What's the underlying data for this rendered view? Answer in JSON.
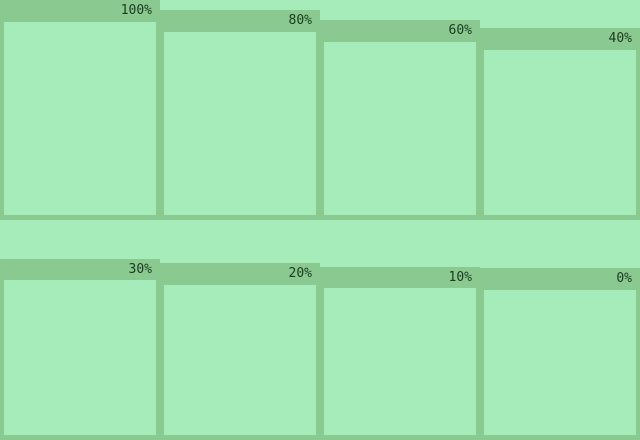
{
  "colors": {
    "background": "#a5ecba",
    "panel_frame": "#8ac98f",
    "label_text": "#1c3a22"
  },
  "panels": [
    {
      "label": "100%"
    },
    {
      "label": "80%"
    },
    {
      "label": "60%"
    },
    {
      "label": "40%"
    },
    {
      "label": "30%"
    },
    {
      "label": "20%"
    },
    {
      "label": "10%"
    },
    {
      "label": "0%"
    }
  ]
}
